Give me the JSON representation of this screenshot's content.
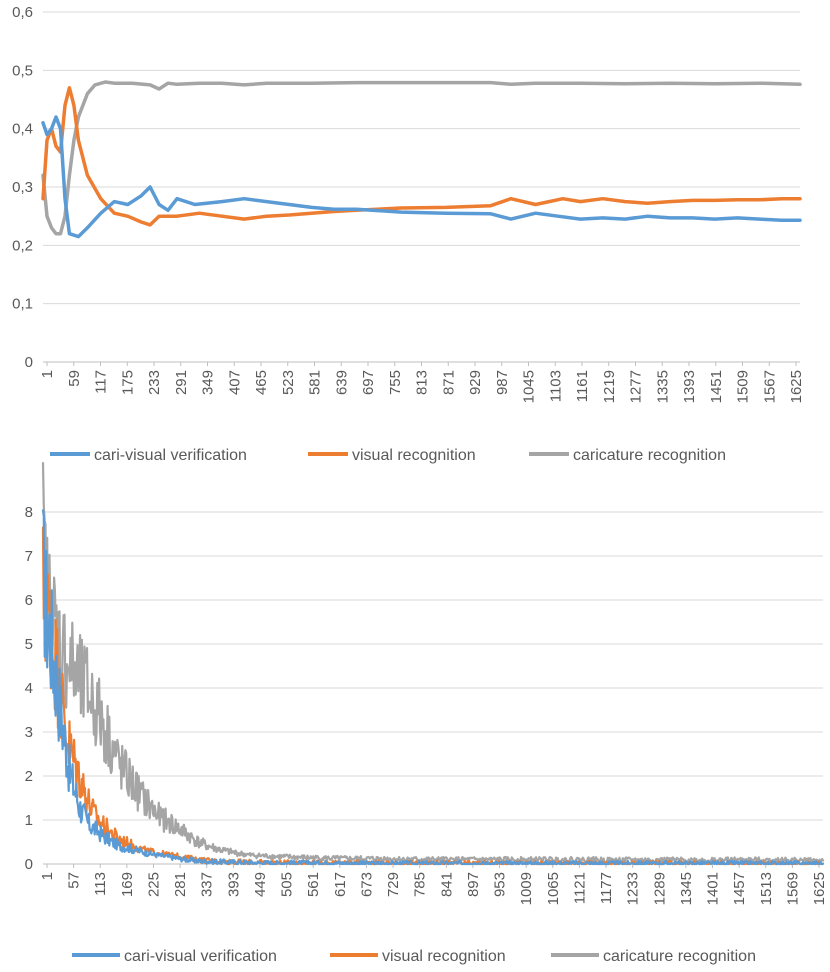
{
  "chart_data": [
    {
      "type": "line",
      "title": "",
      "xlabel": "",
      "ylabel": "",
      "ylim": [
        0,
        0.6
      ],
      "y_ticks": [
        "0",
        "0,1",
        "0,2",
        "0,3",
        "0,4",
        "0,5",
        "0,6"
      ],
      "x_ticks": [
        "1",
        "59",
        "117",
        "175",
        "233",
        "291",
        "349",
        "407",
        "465",
        "523",
        "581",
        "639",
        "697",
        "755",
        "813",
        "871",
        "929",
        "987",
        "1045",
        "1103",
        "1161",
        "1219",
        "1277",
        "1335",
        "1393",
        "1451",
        "1509",
        "1567",
        "1625"
      ],
      "xlim": [
        1,
        1690
      ],
      "grid": "horizontal",
      "legend_position": "bottom",
      "series": [
        {
          "name": "cari-visual verification",
          "color": "#5b9bd5",
          "x": [
            1,
            10,
            20,
            30,
            40,
            50,
            60,
            80,
            100,
            130,
            160,
            190,
            220,
            240,
            260,
            280,
            300,
            340,
            400,
            450,
            500,
            550,
            600,
            650,
            700,
            800,
            900,
            1000,
            1045,
            1100,
            1150,
            1200,
            1250,
            1300,
            1350,
            1400,
            1450,
            1500,
            1550,
            1600,
            1650,
            1690
          ],
          "y": [
            0.41,
            0.39,
            0.4,
            0.42,
            0.4,
            0.28,
            0.22,
            0.215,
            0.23,
            0.255,
            0.275,
            0.27,
            0.285,
            0.3,
            0.27,
            0.26,
            0.28,
            0.27,
            0.275,
            0.28,
            0.275,
            0.27,
            0.265,
            0.262,
            0.262,
            0.257,
            0.255,
            0.254,
            0.245,
            0.255,
            0.25,
            0.245,
            0.247,
            0.245,
            0.25,
            0.247,
            0.247,
            0.245,
            0.247,
            0.245,
            0.243,
            0.243
          ]
        },
        {
          "name": "visual recognition",
          "color": "#ed7d31",
          "x": [
            1,
            10,
            20,
            30,
            40,
            50,
            60,
            70,
            80,
            100,
            130,
            160,
            190,
            220,
            240,
            260,
            300,
            350,
            400,
            450,
            500,
            550,
            600,
            650,
            700,
            800,
            900,
            1000,
            1045,
            1100,
            1161,
            1200,
            1250,
            1300,
            1350,
            1400,
            1450,
            1500,
            1550,
            1600,
            1650,
            1690
          ],
          "y": [
            0.28,
            0.38,
            0.4,
            0.37,
            0.36,
            0.44,
            0.47,
            0.44,
            0.38,
            0.32,
            0.28,
            0.255,
            0.25,
            0.24,
            0.235,
            0.25,
            0.25,
            0.255,
            0.25,
            0.245,
            0.25,
            0.252,
            0.255,
            0.258,
            0.26,
            0.264,
            0.265,
            0.268,
            0.28,
            0.27,
            0.28,
            0.275,
            0.28,
            0.275,
            0.272,
            0.275,
            0.277,
            0.277,
            0.278,
            0.278,
            0.28,
            0.28
          ]
        },
        {
          "name": "caricature recognition",
          "color": "#a5a5a5",
          "x": [
            1,
            10,
            20,
            30,
            40,
            50,
            60,
            70,
            80,
            100,
            117,
            140,
            160,
            200,
            240,
            260,
            280,
            300,
            350,
            400,
            450,
            500,
            600,
            700,
            800,
            900,
            1000,
            1045,
            1100,
            1200,
            1300,
            1400,
            1500,
            1600,
            1650,
            1690
          ],
          "y": [
            0.32,
            0.25,
            0.23,
            0.22,
            0.22,
            0.25,
            0.32,
            0.38,
            0.42,
            0.46,
            0.475,
            0.48,
            0.478,
            0.478,
            0.475,
            0.468,
            0.478,
            0.476,
            0.478,
            0.478,
            0.475,
            0.478,
            0.478,
            0.479,
            0.479,
            0.479,
            0.479,
            0.476,
            0.478,
            0.478,
            0.477,
            0.478,
            0.477,
            0.478,
            0.477,
            0.476
          ]
        }
      ]
    },
    {
      "type": "line",
      "title": "",
      "xlabel": "",
      "ylabel": "",
      "ylim": [
        0,
        8
      ],
      "y_ticks": [
        "0",
        "1",
        "2",
        "3",
        "4",
        "5",
        "6",
        "7",
        "8"
      ],
      "x_ticks": [
        "1",
        "57",
        "113",
        "169",
        "225",
        "281",
        "337",
        "393",
        "449",
        "505",
        "561",
        "617",
        "673",
        "729",
        "785",
        "841",
        "897",
        "953",
        "1009",
        "1065",
        "1121",
        "1177",
        "1233",
        "1289",
        "1345",
        "1401",
        "1457",
        "1513",
        "1569",
        "1625"
      ],
      "xlim": [
        1,
        1690
      ],
      "grid": "horizontal",
      "legend_position": "bottom",
      "series": [
        {
          "name": "cari-visual verification",
          "color": "#5b9bd5",
          "x": [
            1,
            10,
            20,
            30,
            40,
            50,
            60,
            70,
            80,
            90,
            100,
            113,
            130,
            150,
            169,
            190,
            210,
            225,
            250,
            281,
            310,
            337,
            380,
            450,
            500,
            600,
            700,
            800,
            900,
            1000,
            1100,
            1200,
            1300,
            1400,
            1500,
            1600,
            1690
          ],
          "y": [
            6.6,
            5.6,
            5.0,
            4.2,
            3.4,
            2.7,
            2.0,
            1.7,
            1.3,
            1.1,
            0.9,
            0.8,
            0.65,
            0.5,
            0.4,
            0.35,
            0.3,
            0.25,
            0.2,
            0.15,
            0.1,
            0.07,
            0.05,
            0.03,
            0.02,
            0.02,
            0.01,
            0.01,
            0.01,
            0.01,
            0.01,
            0.01,
            0.01,
            0.01,
            0.01,
            0.01,
            0.01
          ]
        },
        {
          "name": "visual recognition",
          "color": "#ed7d31",
          "x": [
            1,
            10,
            20,
            30,
            40,
            50,
            60,
            70,
            80,
            90,
            100,
            113,
            130,
            150,
            169,
            190,
            210,
            225,
            250,
            281,
            310,
            337,
            380,
            450,
            500,
            600,
            700,
            800,
            900,
            1000,
            1100,
            1200,
            1300,
            1400,
            1500,
            1600,
            1690
          ],
          "y": [
            6.2,
            5.7,
            5.2,
            4.5,
            3.8,
            3.1,
            2.6,
            2.3,
            2.0,
            1.7,
            1.4,
            1.1,
            0.9,
            0.7,
            0.55,
            0.45,
            0.35,
            0.3,
            0.25,
            0.2,
            0.15,
            0.1,
            0.06,
            0.04,
            0.03,
            0.02,
            0.02,
            0.01,
            0.01,
            0.01,
            0.01,
            0.01,
            0.01,
            0.01,
            0.01,
            0.01,
            0.01
          ]
        },
        {
          "name": "caricature recognition",
          "color": "#a5a5a5",
          "x": [
            1,
            10,
            20,
            30,
            40,
            57,
            70,
            85,
            100,
            113,
            130,
            150,
            169,
            190,
            210,
            225,
            250,
            281,
            310,
            337,
            360,
            393,
            420,
            449,
            505,
            561,
            617,
            673,
            729,
            785,
            841,
            897,
            953,
            1009,
            1065,
            1121,
            1177,
            1233,
            1289,
            1345,
            1401,
            1457,
            1513,
            1569,
            1625,
            1690
          ],
          "y": [
            7.3,
            6.0,
            5.6,
            5.2,
            4.9,
            4.6,
            4.3,
            4.0,
            3.9,
            3.6,
            3.2,
            2.7,
            2.2,
            1.9,
            1.6,
            1.4,
            1.1,
            0.9,
            0.7,
            0.5,
            0.4,
            0.3,
            0.25,
            0.2,
            0.17,
            0.15,
            0.13,
            0.12,
            0.12,
            0.11,
            0.1,
            0.1,
            0.1,
            0.1,
            0.1,
            0.1,
            0.1,
            0.09,
            0.09,
            0.09,
            0.09,
            0.09,
            0.09,
            0.09,
            0.09,
            0.08
          ]
        }
      ]
    }
  ]
}
